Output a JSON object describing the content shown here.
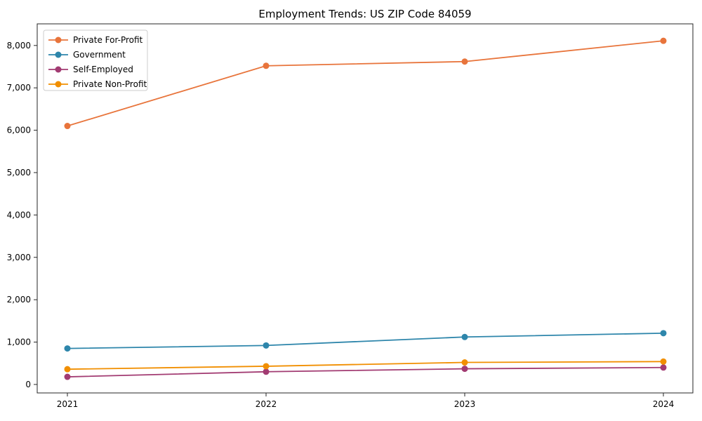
{
  "chart_data": {
    "type": "line",
    "title": "Employment Trends: US ZIP Code 84059",
    "x": [
      2021,
      2022,
      2023,
      2024
    ],
    "xticklabels": [
      "2021",
      "2022",
      "2023",
      "2024"
    ],
    "series": [
      {
        "name": "Private For-Profit",
        "color": "#E8743B",
        "values": [
          6100,
          7520,
          7620,
          8110
        ]
      },
      {
        "name": "Government",
        "color": "#2E86AB",
        "values": [
          850,
          920,
          1120,
          1210
        ]
      },
      {
        "name": "Self-Employed",
        "color": "#A23B72",
        "values": [
          180,
          300,
          370,
          400
        ]
      },
      {
        "name": "Private Non-Profit",
        "color": "#F18F01",
        "values": [
          360,
          430,
          520,
          540
        ]
      }
    ],
    "yticks": [
      0,
      1000,
      2000,
      3000,
      4000,
      5000,
      6000,
      7000,
      8000
    ],
    "ytick_labels": [
      "0",
      "1,000",
      "2,000",
      "3,000",
      "4,000",
      "5,000",
      "6,000",
      "7,000",
      "8,000"
    ],
    "ylim": [
      -200,
      8510
    ],
    "xlabel": "",
    "ylabel": "",
    "grid": false,
    "legend_position": "upper left",
    "marker": "o",
    "axis_color": "#262626",
    "legend_border_color": "#cccccc"
  }
}
